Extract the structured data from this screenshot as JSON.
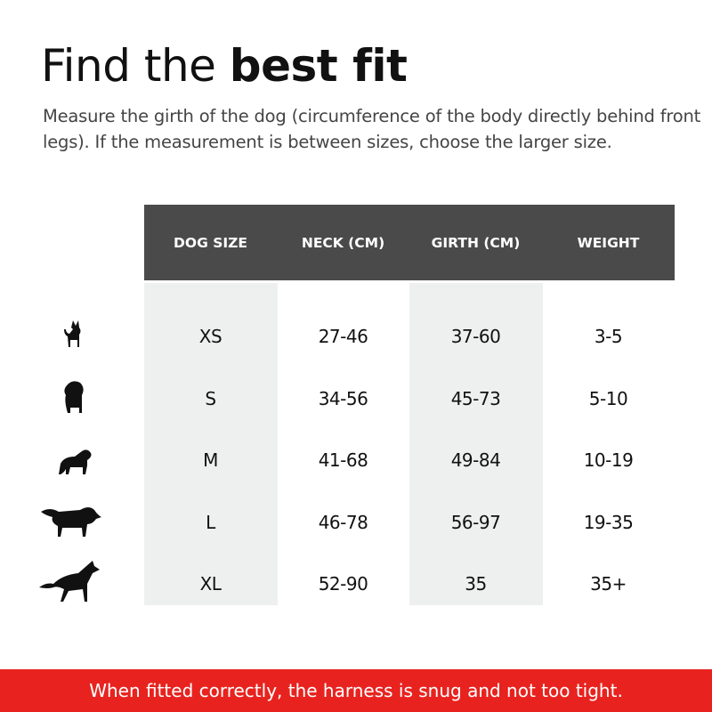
{
  "title": {
    "regular": "Find the ",
    "bold": "best fit"
  },
  "subtitle": "Measure the girth of the dog (circumference of the body directly behind front legs). If the measurement is between sizes, choose the larger size.",
  "table": {
    "headers": [
      "DOG SIZE",
      "NECK (CM)",
      "GIRTH (CM)",
      "WEIGHT"
    ],
    "rows": [
      {
        "icon": "yorkie-silhouette-icon",
        "size": "XS",
        "neck": "27-46",
        "girth": "37-60",
        "weight": "3-5"
      },
      {
        "icon": "shih-tzu-silhouette-icon",
        "size": "S",
        "neck": "34-56",
        "girth": "45-73",
        "weight": "5-10"
      },
      {
        "icon": "spaniel-silhouette-icon",
        "size": "M",
        "neck": "41-68",
        "girth": "49-84",
        "weight": "10-19"
      },
      {
        "icon": "retriever-silhouette-icon",
        "size": "L",
        "neck": "46-78",
        "girth": "56-97",
        "weight": "19-35"
      },
      {
        "icon": "shepherd-silhouette-icon",
        "size": "XL",
        "neck": "52-90",
        "girth": "35",
        "weight": "35+"
      }
    ]
  },
  "footer": "When fitted correctly, the harness is snug and not too tight.",
  "colors": {
    "header_bg": "#4a4a4a",
    "column_shade": "#eef0ef",
    "footer_bg": "#e8231f"
  }
}
